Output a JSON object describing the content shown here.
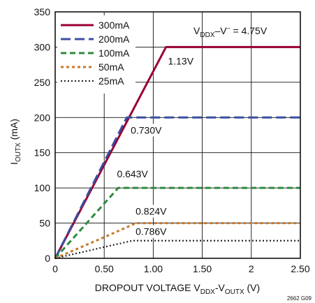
{
  "chart_data": {
    "type": "line",
    "xlabel": "DROPOUT VOLTAGE V",
    "xlabel_sub1": "DDX",
    "xlabel_mid": "-V",
    "xlabel_sub2": "OUTX",
    "xlabel_end": " (V)",
    "ylabel": "I",
    "ylabel_sub": "OUTX",
    "ylabel_end": " (mA)",
    "xlim": [
      0,
      2.5
    ],
    "ylim": [
      0,
      350
    ],
    "xticks": [
      0,
      0.5,
      1.0,
      1.5,
      2.0,
      2.5
    ],
    "xtick_labels": [
      "0",
      "0.50",
      "1.00",
      "1.50",
      "2",
      "2.50"
    ],
    "yticks": [
      0,
      50,
      100,
      150,
      200,
      250,
      300,
      350
    ],
    "ytick_labels": [
      "0",
      "50",
      "100",
      "150",
      "200",
      "250",
      "300",
      "350"
    ],
    "grid": true,
    "legend_position": "top-left",
    "condition": {
      "main": "V",
      "sub": "DDX",
      "rest": "–V",
      "sup": "–",
      "value": " = 4.75V"
    },
    "series": [
      {
        "name": "300mA",
        "color": "#990033",
        "dash": "solid",
        "x": [
          0,
          1.13,
          2.5
        ],
        "y": [
          0,
          300,
          300
        ]
      },
      {
        "name": "200mA",
        "color": "#3a4fa0",
        "dash": "long",
        "x": [
          0,
          0.73,
          2.5
        ],
        "y": [
          0,
          200,
          200
        ]
      },
      {
        "name": "100mA",
        "color": "#2e8b3e",
        "dash": "medium",
        "x": [
          0,
          0.643,
          2.5
        ],
        "y": [
          0,
          100,
          100
        ]
      },
      {
        "name": "50mA",
        "color": "#c8782a",
        "dash": "short",
        "x": [
          0,
          0.5,
          0.824,
          2.5
        ],
        "y": [
          0,
          30,
          50,
          50
        ]
      },
      {
        "name": "25mA",
        "color": "#111111",
        "dash": "dot",
        "x": [
          0,
          0.5,
          0.786,
          2.5
        ],
        "y": [
          0,
          16,
          25,
          25
        ]
      }
    ],
    "annotations": [
      {
        "text": "1.13V",
        "x": 1.15,
        "y": 275
      },
      {
        "text": "0.730V",
        "x": 0.77,
        "y": 177
      },
      {
        "text": "0.643V",
        "x": 0.63,
        "y": 115
      },
      {
        "text": "0.824V",
        "x": 0.82,
        "y": 62
      },
      {
        "text": "0.786V",
        "x": 0.82,
        "y": 33
      }
    ],
    "figure_id": "2662 G09"
  }
}
